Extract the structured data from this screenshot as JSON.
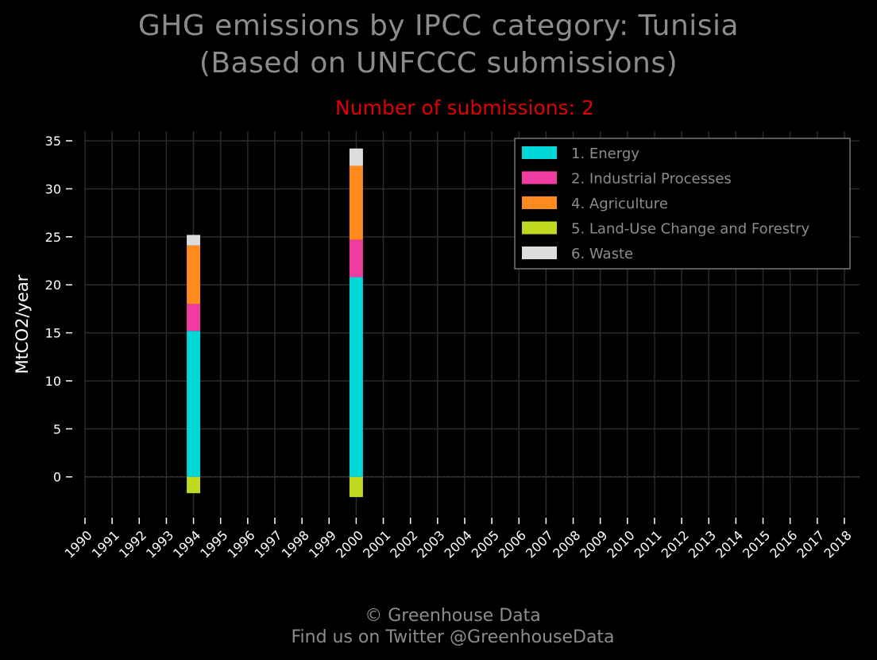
{
  "title_line1": "GHG emissions by IPCC category: Tunisia",
  "title_line2": "(Based on UNFCCC submissions)",
  "subtitle": "Number of submissions: 2",
  "footer_line1": "© Greenhouse Data",
  "footer_line2": "Find us on Twitter @GreenhouseData",
  "chart_data": {
    "type": "bar",
    "stacked": true,
    "ylabel": "MtCO2/year",
    "ylim": [
      -4,
      36
    ],
    "yticks": [
      0,
      5,
      10,
      15,
      20,
      25,
      30,
      35
    ],
    "grid": true,
    "legend_position": "top-right",
    "categories": [
      "1990",
      "1991",
      "1992",
      "1993",
      "1994",
      "1995",
      "1996",
      "1997",
      "1998",
      "1999",
      "2000",
      "2001",
      "2002",
      "2003",
      "2004",
      "2005",
      "2006",
      "2007",
      "2008",
      "2009",
      "2010",
      "2011",
      "2012",
      "2013",
      "2014",
      "2015",
      "2016",
      "2017",
      "2018"
    ],
    "series": [
      {
        "name": "1. Energy",
        "color": "#00d8d8",
        "values": {
          "1994": 15.2,
          "2000": 20.8
        }
      },
      {
        "name": "2. Industrial Processes",
        "color": "#f03ca0",
        "values": {
          "1994": 2.8,
          "2000": 3.9
        }
      },
      {
        "name": "4. Agriculture",
        "color": "#ff8a1e",
        "values": {
          "1994": 6.1,
          "2000": 7.7
        }
      },
      {
        "name": "5. Land-Use Change and Forestry",
        "color": "#c0d820",
        "values": {
          "1994": -1.7,
          "2000": -2.1
        }
      },
      {
        "name": "6. Waste",
        "color": "#dcdcdc",
        "values": {
          "1994": 1.1,
          "2000": 1.8
        }
      }
    ]
  }
}
